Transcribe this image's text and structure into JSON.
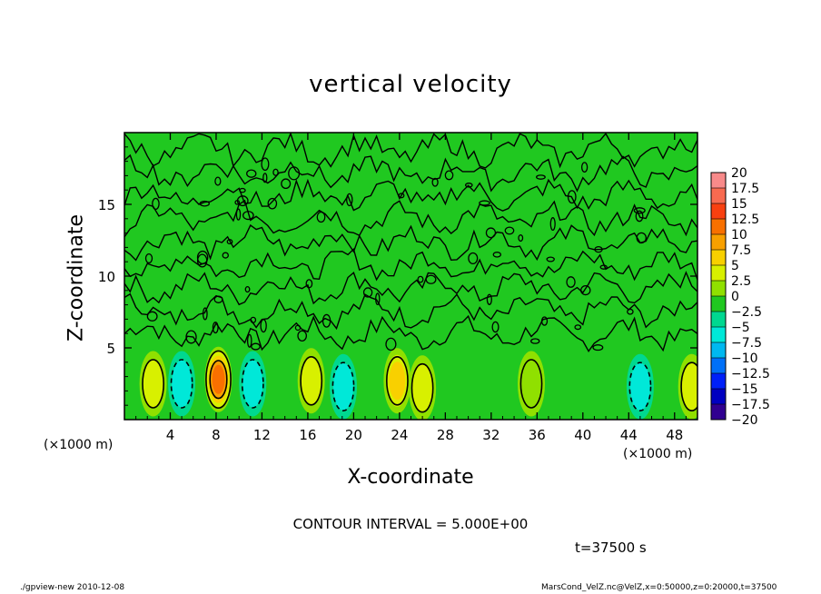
{
  "chart_data": {
    "type": "heatmap",
    "title": "vertical velocity",
    "xlabel": "X-coordinate",
    "ylabel": "Z-coordinate",
    "x_unit_left": "(×1000 m)",
    "x_unit_right": "(×1000 m)",
    "xlim": [
      0,
      50
    ],
    "ylim": [
      0,
      20
    ],
    "x_ticks": [
      4,
      8,
      12,
      16,
      20,
      24,
      28,
      32,
      36,
      40,
      44,
      48
    ],
    "y_ticks": [
      5,
      10,
      15
    ],
    "colorbar": {
      "levels": [
        20,
        17.5,
        15,
        12.5,
        10,
        7.5,
        5,
        2.5,
        0,
        -2.5,
        -5,
        -7.5,
        -10,
        -12.5,
        -15,
        -17.5,
        -20
      ],
      "colors": [
        "#f88a8a",
        "#f86a50",
        "#f84010",
        "#f87000",
        "#f8a000",
        "#f8d000",
        "#d8f000",
        "#90e000",
        "#20c820",
        "#00d890",
        "#00e8d8",
        "#00b8f0",
        "#0070f8",
        "#0020f8",
        "#0000c0",
        "#300090",
        "#6010a0"
      ]
    },
    "updrafts": [
      {
        "x": 2.5,
        "z": 2.5,
        "w": 4
      },
      {
        "x": 8.2,
        "z": 2.8,
        "w": 12
      },
      {
        "x": 16.3,
        "z": 2.7,
        "w": 6
      },
      {
        "x": 23.8,
        "z": 2.7,
        "w": 7
      },
      {
        "x": 26,
        "z": 2.2,
        "w": 4
      },
      {
        "x": 35.5,
        "z": 2.5,
        "w": 3
      },
      {
        "x": 49.5,
        "z": 2.3,
        "w": 5
      }
    ],
    "downdrafts": [
      {
        "x": 5,
        "z": 2.5,
        "w": -6
      },
      {
        "x": 11.2,
        "z": 2.5,
        "w": -5
      },
      {
        "x": 19.1,
        "z": 2.3,
        "w": -5
      },
      {
        "x": 45,
        "z": 2.3,
        "w": -5
      }
    ],
    "contour_interval": "CONTOUR INTERVAL = 5.000E+00",
    "time_label": "t=37500 s",
    "grid": false
  },
  "footer": {
    "left": "./gpview-new  2010-12-08",
    "right": "MarsCond_VelZ.nc@VelZ,x=0:50000,z=0:20000,t=37500"
  }
}
